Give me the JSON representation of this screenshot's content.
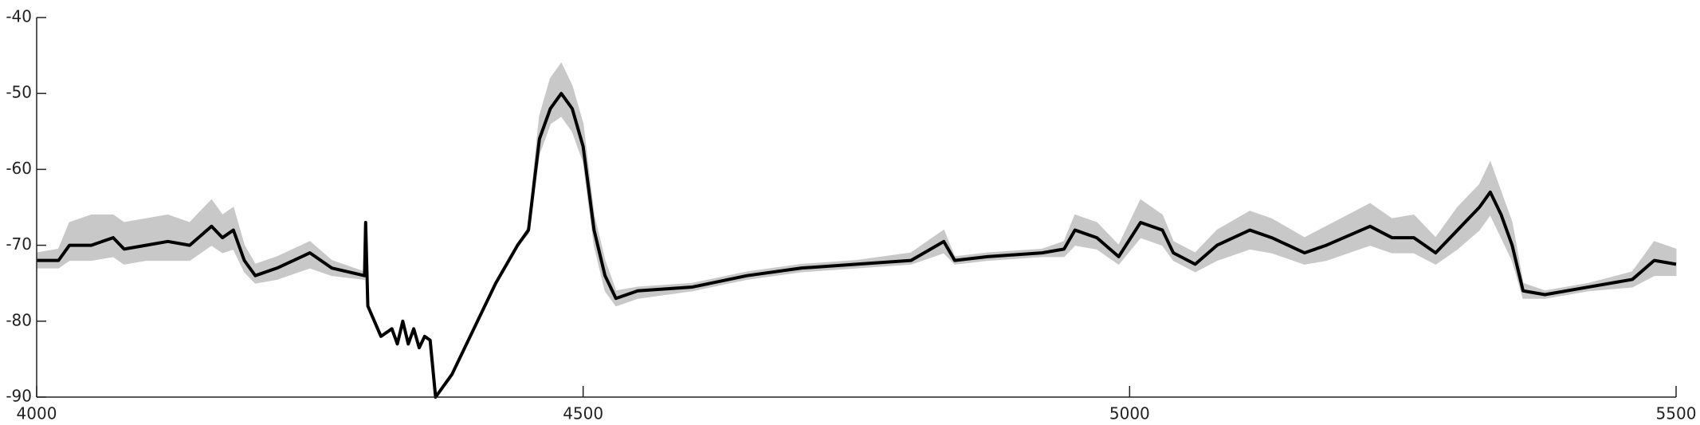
{
  "chart_data": {
    "type": "line",
    "x": [
      4000,
      4020,
      4030,
      4050,
      4070,
      4080,
      4100,
      4120,
      4140,
      4160,
      4170,
      4180,
      4190,
      4200,
      4220,
      4250,
      4270,
      4300,
      4301,
      4303,
      4315,
      4325,
      4330,
      4335,
      4340,
      4345,
      4350,
      4355,
      4360,
      4365,
      4380,
      4400,
      4420,
      4440,
      4450,
      4455,
      4460,
      4470,
      4480,
      4490,
      4500,
      4510,
      4520,
      4530,
      4550,
      4600,
      4650,
      4700,
      4750,
      4800,
      4830,
      4840,
      4870,
      4920,
      4940,
      4950,
      4970,
      4990,
      5010,
      5030,
      5040,
      5060,
      5080,
      5110,
      5130,
      5160,
      5180,
      5220,
      5240,
      5260,
      5280,
      5300,
      5320,
      5330,
      5340,
      5350,
      5360,
      5380,
      5420,
      5460,
      5480,
      5500
    ],
    "series": [
      {
        "color": "#000000",
        "values": [
          -72,
          -72,
          -70,
          -70,
          -69,
          -70.5,
          -70,
          -69.5,
          -70,
          -67.5,
          -69,
          -68,
          -72,
          -74,
          -73,
          -71,
          -73,
          -74,
          -67,
          -78,
          -82,
          -81,
          -83,
          -80,
          -83,
          -81,
          -83.5,
          -82,
          -82.5,
          -90,
          -87,
          -81,
          -75,
          -70,
          -68,
          -62,
          -56,
          -52,
          -50,
          -52,
          -57,
          -68,
          -74,
          -77,
          -76,
          -75.5,
          -74,
          -73,
          -72.5,
          -72,
          -69.5,
          -72,
          -71.5,
          -71,
          -70.5,
          -68,
          -69,
          -71.5,
          -67,
          -68,
          -71,
          -72.5,
          -70,
          -68,
          -69,
          -71,
          -70,
          -67.5,
          -69,
          -69,
          -71,
          -68,
          -65,
          -63,
          -66,
          -70,
          -76,
          -76.5,
          -75.5,
          -74.5,
          -72,
          -72.5
        ]
      }
    ],
    "band_color": "#c8c8c8",
    "band_lower": [
      -73,
      -73,
      -72,
      -72,
      -71.5,
      -72.5,
      -72,
      -72,
      -72,
      -70,
      -71,
      -70.5,
      -73.5,
      -75,
      -74.5,
      -73,
      -74,
      -74.5,
      -67,
      -78,
      -82,
      -81,
      -83,
      -80,
      -83,
      -81,
      -83.5,
      -82,
      -82.5,
      -90,
      -87,
      -81,
      -75,
      -70,
      -68.5,
      -63,
      -58,
      -54,
      -53,
      -55,
      -59,
      -70,
      -76,
      -78,
      -77,
      -76,
      -74.5,
      -73.5,
      -73,
      -72.5,
      -71,
      -72.5,
      -72,
      -71.5,
      -71.5,
      -70,
      -70.5,
      -72.5,
      -69,
      -70,
      -72,
      -73.5,
      -72,
      -70.5,
      -71,
      -72.5,
      -72,
      -70,
      -71,
      -71,
      -72.5,
      -70.5,
      -68,
      -66,
      -69,
      -72,
      -77,
      -77,
      -76,
      -75.5,
      -74,
      -74
    ],
    "band_upper": [
      -71,
      -70.5,
      -67,
      -66,
      -66,
      -67,
      -66.5,
      -66,
      -67,
      -64,
      -66,
      -65,
      -70,
      -72.5,
      -71.5,
      -69.5,
      -72,
      -73.5,
      -67,
      -78,
      -82,
      -81,
      -83,
      -80,
      -83,
      -81,
      -83.5,
      -82,
      -82.5,
      -90,
      -87,
      -81,
      -75,
      -70,
      -67.5,
      -60,
      -53,
      -48,
      -46,
      -49,
      -54,
      -66,
      -72,
      -76,
      -75.5,
      -75,
      -73.5,
      -72.5,
      -72,
      -71,
      -68,
      -71.5,
      -71,
      -70.5,
      -69.5,
      -66,
      -67,
      -70,
      -64,
      -66,
      -69.5,
      -71,
      -68,
      -65.5,
      -66.5,
      -69,
      -67.5,
      -64.5,
      -66.5,
      -66,
      -69,
      -65,
      -62,
      -59,
      -63,
      -67,
      -75,
      -76,
      -75,
      -73.5,
      -69.5,
      -70.5
    ],
    "xlim": [
      4000,
      5500
    ],
    "xticks": [
      4000,
      4500,
      5000,
      5500
    ],
    "ylim": [
      -90,
      -40
    ],
    "yticks": [
      -90,
      -80,
      -70,
      -60,
      -50,
      -40
    ]
  }
}
